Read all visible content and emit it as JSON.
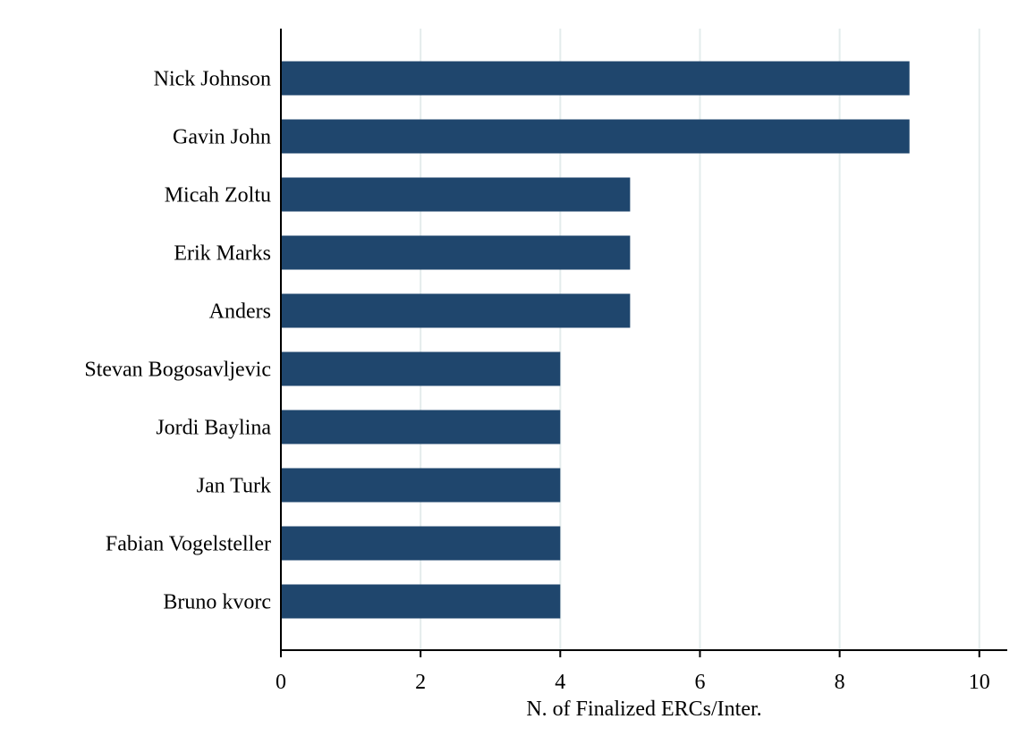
{
  "chart_data": {
    "type": "bar",
    "orientation": "horizontal",
    "categories": [
      "Nick Johnson",
      "Gavin John",
      "Micah Zoltu",
      "Erik Marks",
      "Anders",
      "Stevan Bogosavljevic",
      "Jordi Baylina",
      "Jan Turk",
      "Fabian Vogelsteller",
      "Bruno kvorc"
    ],
    "values": [
      9,
      9,
      5,
      5,
      5,
      4,
      4,
      4,
      4,
      4
    ],
    "title": "",
    "xlabel": "N. of Finalized ERCs/Inter.",
    "ylabel": "",
    "xlim": [
      0,
      10.4
    ],
    "xticks": [
      0,
      2,
      4,
      6,
      8,
      10
    ],
    "xtick_labels": [
      "0",
      "2",
      "4",
      "6",
      "8",
      "10"
    ],
    "grid": "vertical",
    "colors": {
      "bar": "#1f466d",
      "grid": "#e4ecec",
      "axis": "#000000"
    }
  }
}
